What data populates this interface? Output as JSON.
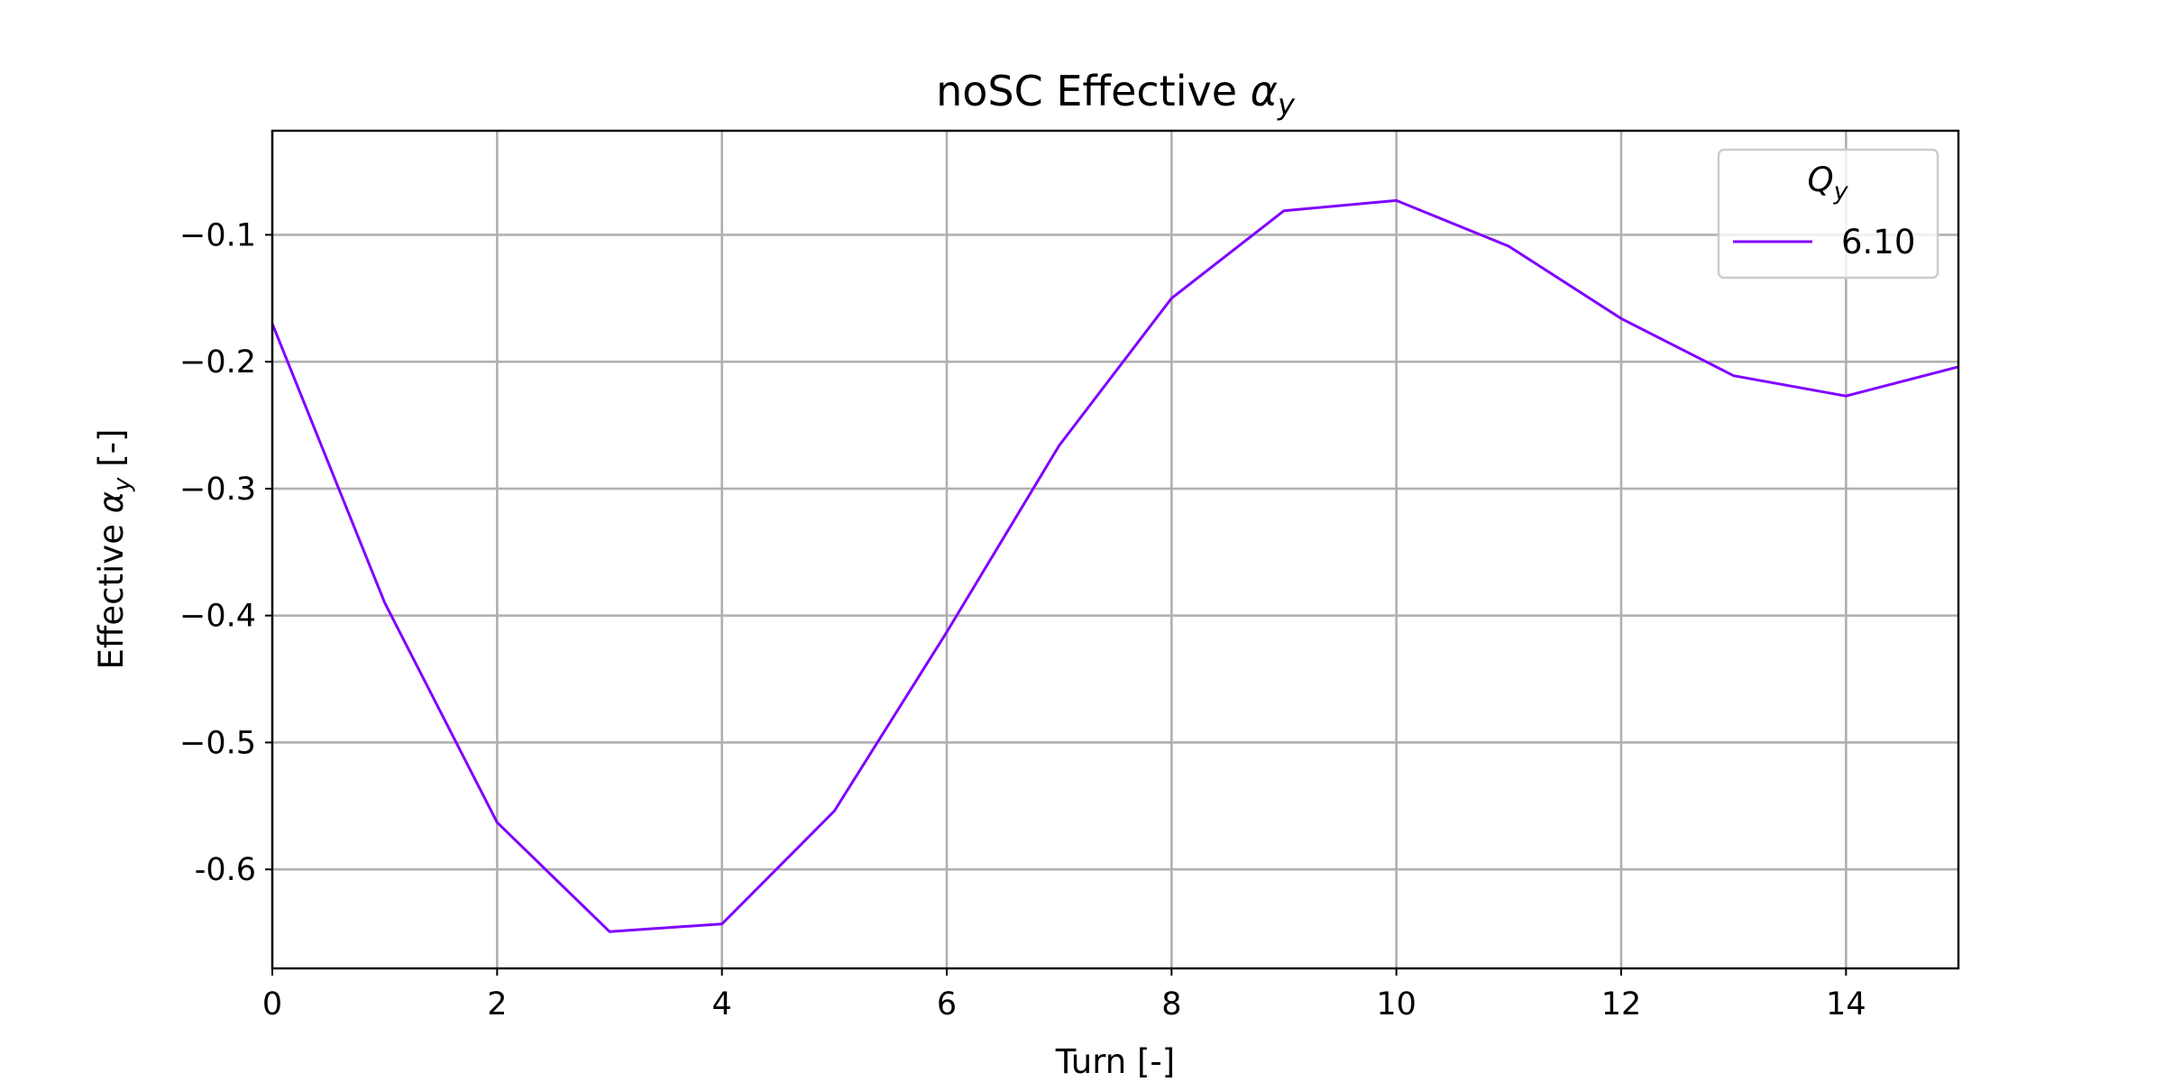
{
  "chart_data": {
    "type": "line",
    "title_parts": {
      "text": "noSC Effective ",
      "symbol": "α",
      "subscript": "y"
    },
    "xlabel": "Turn [-]",
    "ylabel_parts": {
      "text": "Effective ",
      "symbol": "α",
      "subscript": "y",
      "suffix": " [-]"
    },
    "xlim": [
      0,
      15
    ],
    "ylim": [
      -0.678,
      -0.018
    ],
    "x_ticks": [
      0,
      2,
      4,
      6,
      8,
      10,
      12,
      14
    ],
    "x_tick_labels": [
      "0",
      "2",
      "4",
      "6",
      "8",
      "10",
      "12",
      "14"
    ],
    "y_ticks": [
      -0.1,
      -0.2,
      -0.3,
      -0.4,
      -0.5,
      -0.6
    ],
    "y_tick_labels": [
      "−0.1",
      "−0.2",
      "−0.3",
      "−0.4",
      "−0.5",
      "-0.6"
    ],
    "grid": true,
    "legend": {
      "placement": "top-right",
      "title_symbol": "Q",
      "title_subscript": "y"
    },
    "series": [
      {
        "name": "6.10",
        "color": "#8000ff",
        "x": [
          0,
          1,
          2,
          3,
          4,
          5,
          6,
          7,
          8,
          9,
          10,
          11,
          12,
          13,
          14,
          15
        ],
        "y": [
          -0.17,
          -0.39,
          -0.563,
          -0.649,
          -0.643,
          -0.554,
          -0.413,
          -0.266,
          -0.15,
          -0.081,
          -0.073,
          -0.109,
          -0.166,
          -0.211,
          -0.227,
          -0.204
        ]
      }
    ]
  }
}
